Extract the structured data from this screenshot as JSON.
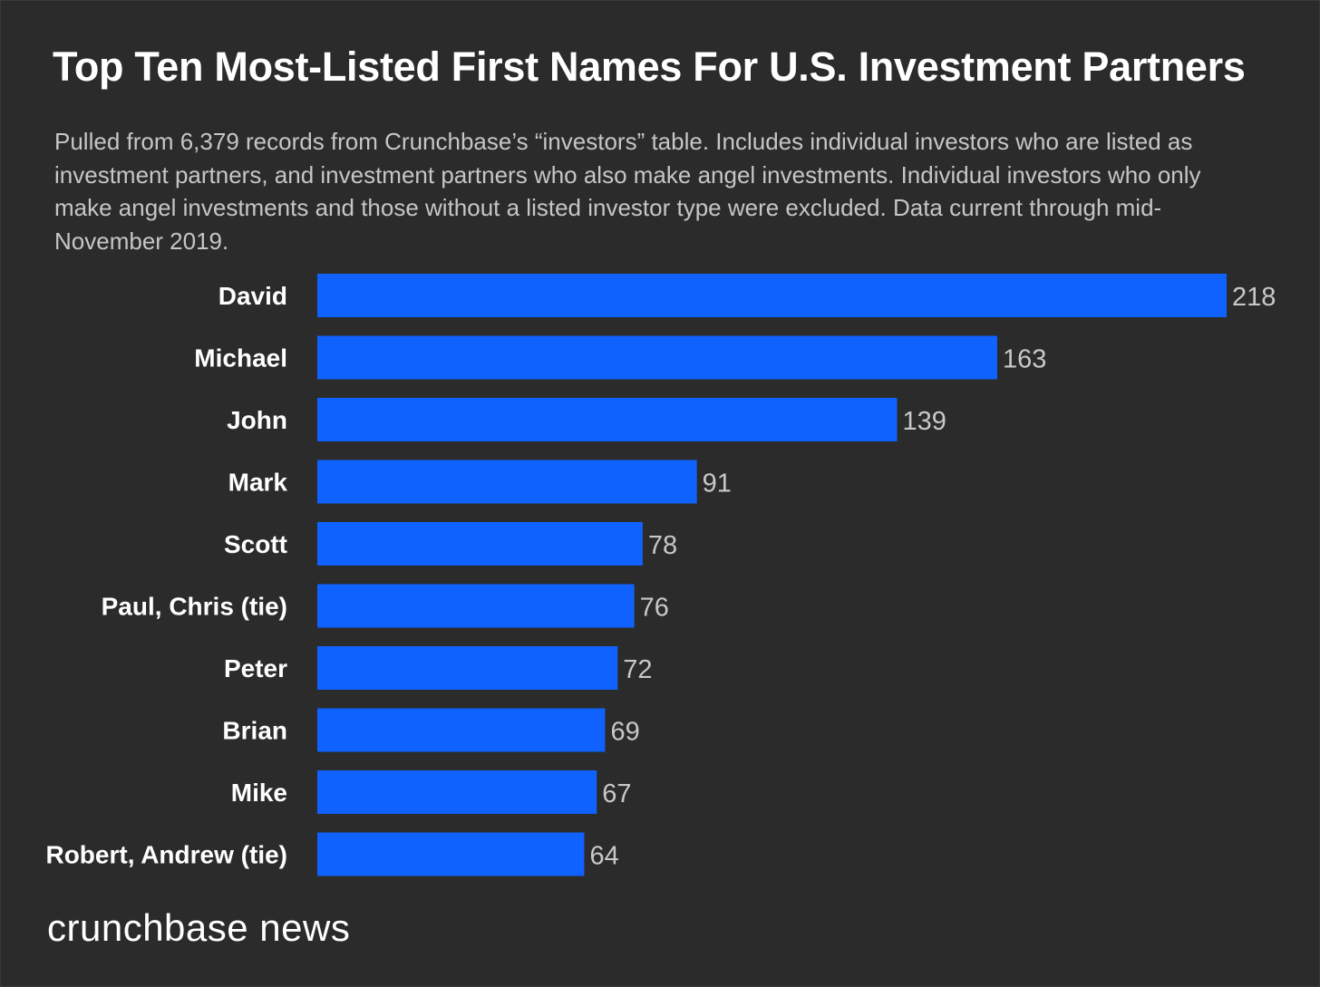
{
  "colors": {
    "background": "#2b2b2b",
    "bar": "#0f62fe",
    "category_label": "#ffffff",
    "value_label": "#c8c8c8",
    "title": "#ffffff",
    "subtitle": "#c6c6c6"
  },
  "brand": "crunchbase news",
  "chart_data": {
    "type": "bar",
    "orientation": "horizontal",
    "title": "Top Ten Most-Listed First Names For U.S. Investment Partners",
    "subtitle": "Pulled from 6,379 records from Crunchbase’s “investors” table. Includes individual investors who are listed as investment partners, and investment partners who also make angel investments. Individual investors who only make angel investments and those without a listed investor type were excluded. Data current through mid-November 2019.",
    "xlabel": "",
    "ylabel": "",
    "grid": false,
    "legend": "none",
    "xlim": [
      0,
      218
    ],
    "categories": [
      "David",
      "Michael",
      "John",
      "Mark",
      "Scott",
      "Paul, Chris (tie)",
      "Peter",
      "Brian",
      "Mike",
      "Robert, Andrew (tie)"
    ],
    "values": [
      218,
      163,
      139,
      91,
      78,
      76,
      72,
      69,
      67,
      64
    ]
  }
}
